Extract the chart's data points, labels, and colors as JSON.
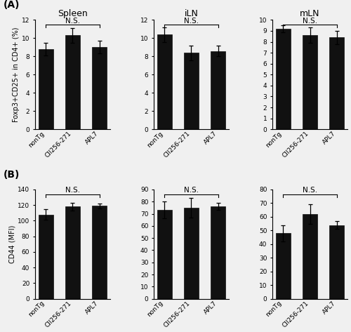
{
  "panel_A": {
    "title": "(A)",
    "subplots": [
      {
        "title": "Spleen",
        "categories": [
          "nonTg",
          "CII256-271",
          "APL7"
        ],
        "values": [
          8.8,
          10.3,
          9.0
        ],
        "errors": [
          0.7,
          0.8,
          0.7
        ],
        "ylabel": "Foxp3+CD25+ in CD4+ (%)",
        "ylim": [
          0,
          12
        ],
        "yticks": [
          0,
          2,
          4,
          6,
          8,
          10,
          12
        ]
      },
      {
        "title": "iLN",
        "categories": [
          "nonTg",
          "CII256-271",
          "APL7"
        ],
        "values": [
          10.4,
          8.4,
          8.6
        ],
        "errors": [
          0.8,
          0.8,
          0.6
        ],
        "ylabel": "Foxp3+CD25+ in CD4+ (%)",
        "ylim": [
          0,
          12
        ],
        "yticks": [
          0,
          2,
          4,
          6,
          8,
          10,
          12
        ]
      },
      {
        "title": "mLN",
        "categories": [
          "nonTg",
          "CII256-271",
          "APL7"
        ],
        "values": [
          9.2,
          8.6,
          8.4
        ],
        "errors": [
          0.3,
          0.7,
          0.6
        ],
        "ylabel": "Foxp3+CD25+ in CD4+ (%)",
        "ylim": [
          0,
          10
        ],
        "yticks": [
          0,
          1,
          2,
          3,
          4,
          5,
          6,
          7,
          8,
          9,
          10
        ]
      }
    ]
  },
  "panel_B": {
    "title": "(B)",
    "subplots": [
      {
        "categories": [
          "nonTg",
          "CII256-271",
          "APL7"
        ],
        "values": [
          108,
          118,
          119
        ],
        "errors": [
          7,
          5,
          3
        ],
        "ylabel": "CD44 (MFI)",
        "ylim": [
          0,
          140
        ],
        "yticks": [
          0,
          20,
          40,
          60,
          80,
          100,
          120,
          140
        ]
      },
      {
        "categories": [
          "nonTg",
          "CII256-271",
          "APL7"
        ],
        "values": [
          73,
          75,
          76
        ],
        "errors": [
          7,
          8,
          3
        ],
        "ylabel": "CD44 (MFI)",
        "ylim": [
          0,
          90
        ],
        "yticks": [
          0,
          10,
          20,
          30,
          40,
          50,
          60,
          70,
          80,
          90
        ]
      },
      {
        "categories": [
          "nonTg",
          "CII256-271",
          "APL7"
        ],
        "values": [
          48,
          62,
          54
        ],
        "errors": [
          6,
          7,
          3
        ],
        "ylabel": "CD44 (MFI)",
        "ylim": [
          0,
          80
        ],
        "yticks": [
          0,
          10,
          20,
          30,
          40,
          50,
          60,
          70,
          80
        ]
      }
    ]
  },
  "bar_color": "#111111",
  "bar_width": 0.55,
  "ns_text": "N.S.",
  "ns_fontsize": 7.5,
  "title_fontsize": 9,
  "tick_fontsize": 6.5,
  "ylabel_fontsize": 7,
  "panel_label_fontsize": 10,
  "bg_color": "#f0f0f0"
}
